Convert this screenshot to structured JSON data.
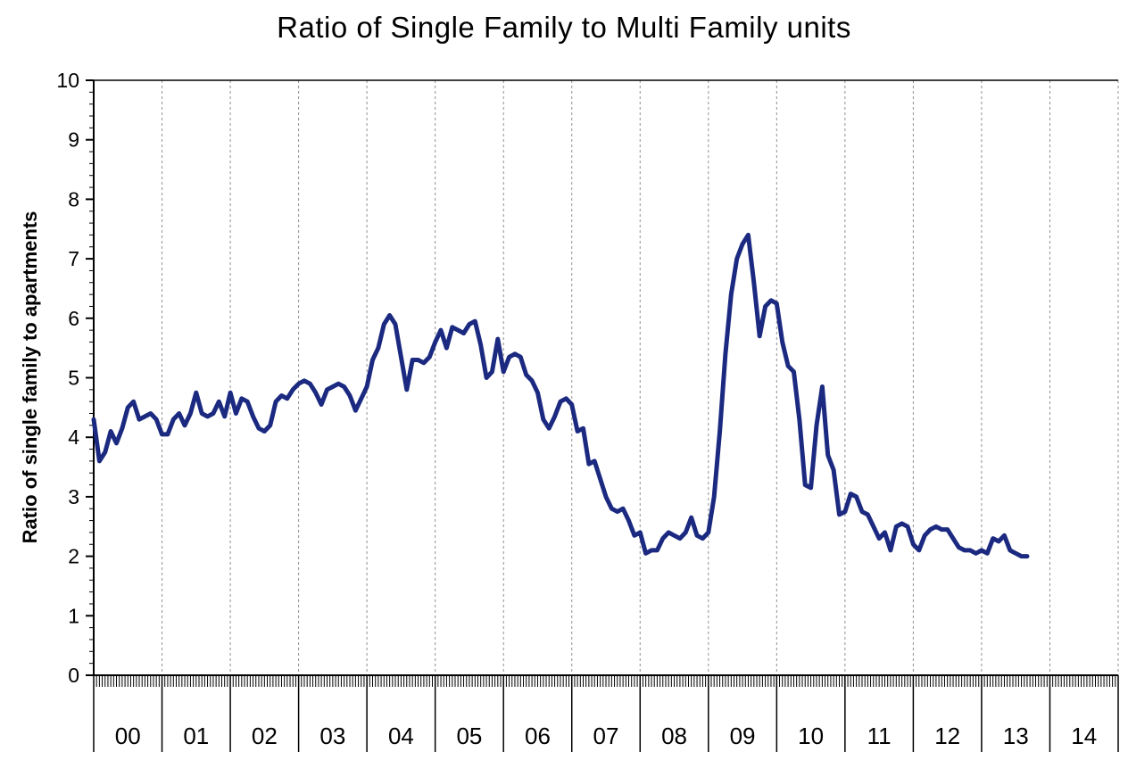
{
  "colors": {
    "line": "#1b2a80",
    "grid": "#909090",
    "axis": "#000000",
    "text": "#000000",
    "background": "#ffffff"
  },
  "chart_data": {
    "type": "line",
    "title": "Ratio of Single Family to Multi Family units",
    "xlabel": "",
    "ylabel": "Ratio of single family to apartments",
    "ylim": [
      0,
      10
    ],
    "xlim": [
      2000,
      2015
    ],
    "y_ticks": [
      0,
      1,
      2,
      3,
      4,
      5,
      6,
      7,
      8,
      9,
      10
    ],
    "x_categories": [
      "00",
      "01",
      "02",
      "03",
      "04",
      "05",
      "06",
      "07",
      "08",
      "09",
      "10",
      "11",
      "12",
      "13",
      "14"
    ],
    "grid": "vertical-dashed",
    "legend": "none",
    "series": [
      {
        "name": "Ratio of single family to apartments",
        "start_year": 2000,
        "frequency": "monthly",
        "values": [
          4.3,
          3.6,
          3.75,
          4.1,
          3.9,
          4.15,
          4.5,
          4.6,
          4.3,
          4.35,
          4.4,
          4.3,
          4.05,
          4.05,
          4.3,
          4.4,
          4.2,
          4.4,
          4.75,
          4.4,
          4.35,
          4.4,
          4.6,
          4.35,
          4.75,
          4.4,
          4.65,
          4.6,
          4.35,
          4.15,
          4.1,
          4.2,
          4.6,
          4.7,
          4.65,
          4.8,
          4.9,
          4.95,
          4.9,
          4.75,
          4.55,
          4.8,
          4.85,
          4.9,
          4.85,
          4.7,
          4.45,
          4.65,
          4.85,
          5.3,
          5.5,
          5.9,
          6.05,
          5.9,
          5.35,
          4.8,
          5.3,
          5.3,
          5.25,
          5.35,
          5.6,
          5.8,
          5.5,
          5.85,
          5.8,
          5.75,
          5.9,
          5.95,
          5.55,
          5.0,
          5.1,
          5.65,
          5.1,
          5.35,
          5.4,
          5.35,
          5.05,
          4.95,
          4.75,
          4.3,
          4.15,
          4.35,
          4.6,
          4.65,
          4.55,
          4.1,
          4.15,
          3.55,
          3.6,
          3.3,
          3.0,
          2.8,
          2.75,
          2.8,
          2.6,
          2.35,
          2.4,
          2.05,
          2.1,
          2.1,
          2.3,
          2.4,
          2.35,
          2.3,
          2.4,
          2.65,
          2.35,
          2.3,
          2.4,
          3.0,
          4.1,
          5.4,
          6.4,
          7.0,
          7.25,
          7.4,
          6.6,
          5.7,
          6.2,
          6.3,
          6.25,
          5.6,
          5.2,
          5.1,
          4.3,
          3.2,
          3.15,
          4.2,
          4.85,
          3.7,
          3.45,
          2.7,
          2.75,
          3.05,
          3.0,
          2.75,
          2.7,
          2.5,
          2.3,
          2.4,
          2.1,
          2.5,
          2.55,
          2.5,
          2.2,
          2.1,
          2.35,
          2.45,
          2.5,
          2.45,
          2.45,
          2.3,
          2.15,
          2.1,
          2.1,
          2.05,
          2.1,
          2.05,
          2.3,
          2.25,
          2.35,
          2.1,
          2.05,
          2.0,
          2.0
        ]
      }
    ]
  }
}
